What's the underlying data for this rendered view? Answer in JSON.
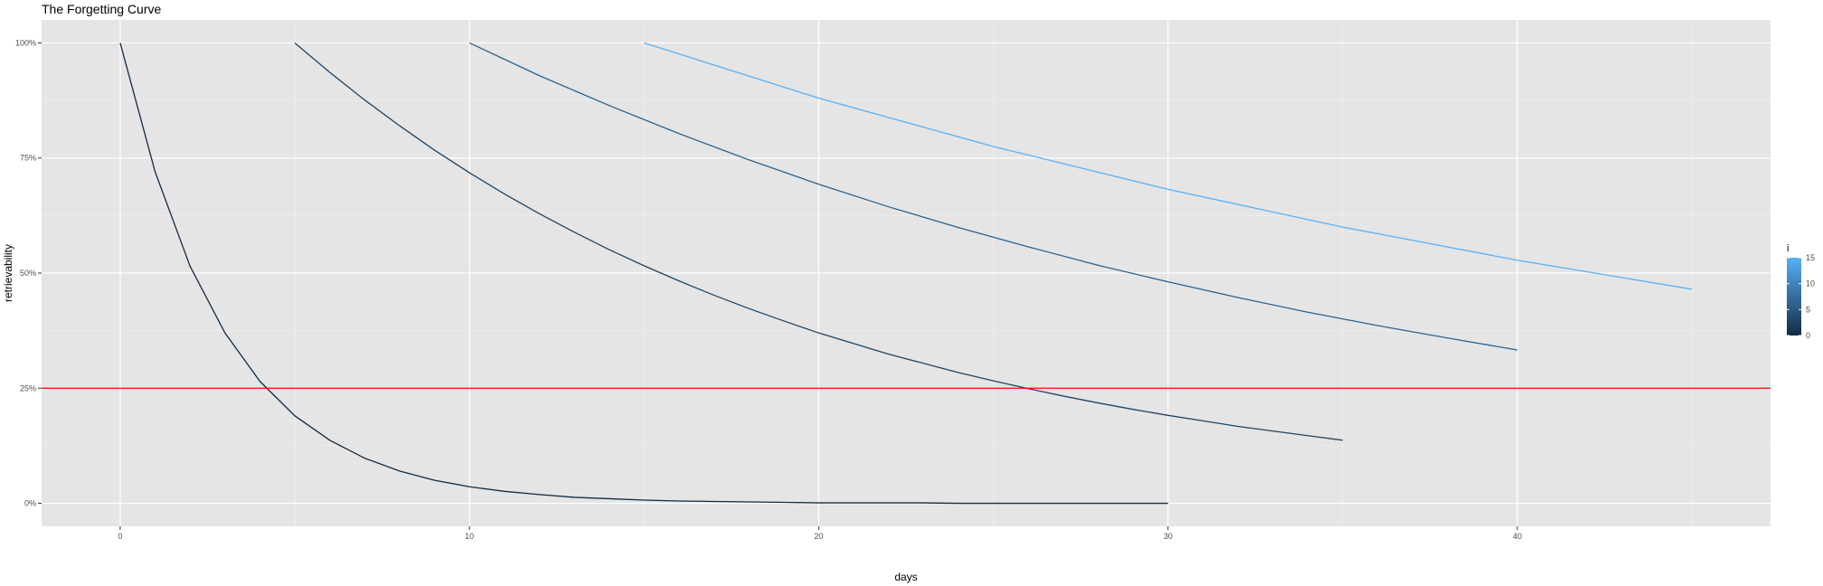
{
  "chart_data": {
    "type": "line",
    "title": "The Forgetting Curve",
    "xlabel": "days",
    "ylabel": "retrievability",
    "xlim": [
      -2.25,
      47.25
    ],
    "ylim": [
      -0.05,
      1.05
    ],
    "x_ticks": [
      0,
      10,
      20,
      30,
      40
    ],
    "x_tick_labels": [
      "0",
      "10",
      "20",
      "30",
      "40"
    ],
    "x_minor_ticks": [
      5,
      15,
      25,
      35,
      45
    ],
    "y_ticks": [
      0,
      0.25,
      0.5,
      0.75,
      1.0
    ],
    "y_tick_labels": [
      "0%",
      "25%",
      "50%",
      "75%",
      "100%"
    ],
    "y_minor_ticks": [
      0.125,
      0.375,
      0.625,
      0.875
    ],
    "grid": true,
    "background": "#e5e5e5",
    "series": [
      {
        "i": 0,
        "color": "#132b43",
        "x": [
          0,
          1,
          2,
          3,
          4,
          5,
          6,
          7,
          8,
          9,
          10,
          11,
          12,
          13,
          14,
          15,
          16,
          17,
          18,
          19,
          20,
          21,
          22,
          23,
          24,
          25,
          26,
          27,
          28,
          29,
          30
        ],
        "y": [
          1.0,
          0.72,
          0.515,
          0.37,
          0.265,
          0.19,
          0.137,
          0.098,
          0.07,
          0.05,
          0.036,
          0.026,
          0.019,
          0.013,
          0.01,
          0.007,
          0.005,
          0.004,
          0.003,
          0.002,
          0.001,
          0.001,
          0.001,
          0.001,
          0,
          0,
          0,
          0,
          0,
          0,
          0
        ]
      },
      {
        "i": 5,
        "color": "#1e4565",
        "x": [
          5,
          6,
          7,
          8,
          9,
          10,
          11,
          12,
          13,
          14,
          15,
          16,
          17,
          18,
          19,
          20,
          21,
          22,
          23,
          24,
          25,
          26,
          27,
          28,
          29,
          30,
          31,
          32,
          33,
          34,
          35
        ],
        "y": [
          1.0,
          0.936,
          0.876,
          0.82,
          0.767,
          0.718,
          0.672,
          0.629,
          0.589,
          0.551,
          0.516,
          0.483,
          0.452,
          0.423,
          0.396,
          0.37,
          0.347,
          0.324,
          0.304,
          0.284,
          0.266,
          0.249,
          0.233,
          0.218,
          0.204,
          0.191,
          0.179,
          0.167,
          0.157,
          0.147,
          0.137
        ]
      },
      {
        "i": 10,
        "color": "#2a628f",
        "x": [
          10,
          12,
          14,
          16,
          18,
          20,
          22,
          24,
          26,
          28,
          30,
          32,
          34,
          36,
          38,
          40
        ],
        "y": [
          1.0,
          0.929,
          0.864,
          0.803,
          0.746,
          0.693,
          0.644,
          0.599,
          0.557,
          0.517,
          0.481,
          0.447,
          0.415,
          0.386,
          0.359,
          0.333
        ]
      },
      {
        "i": 15,
        "color": "#56b1f7",
        "x": [
          15,
          20,
          25,
          30,
          35,
          40,
          45
        ],
        "y": [
          1.0,
          0.88,
          0.775,
          0.682,
          0.6,
          0.528,
          0.465
        ]
      }
    ],
    "hline": {
      "y": 0.25,
      "color": "#ff0000"
    },
    "legend": {
      "title": "i",
      "position": "right",
      "type": "colorbar",
      "range": [
        0,
        15
      ],
      "low_color": "#132b43",
      "high_color": "#56b1f7",
      "breaks": [
        0,
        5,
        10,
        15
      ],
      "break_labels": [
        "0",
        "5",
        "10",
        "15"
      ]
    }
  }
}
